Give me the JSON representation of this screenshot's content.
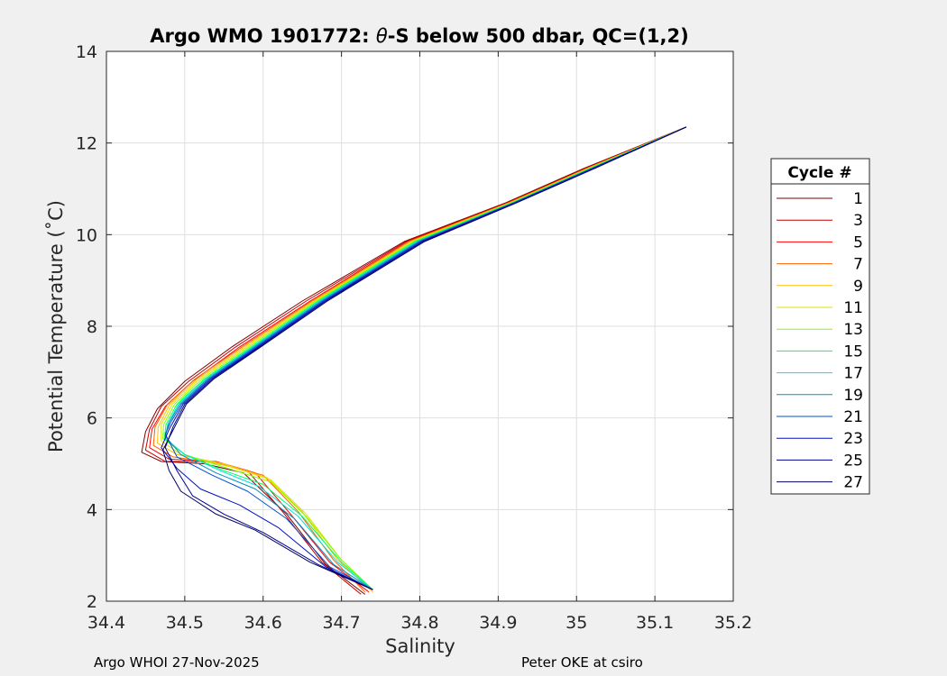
{
  "chart_data": {
    "type": "line",
    "title_prefix": "Argo WMO 1901772: ",
    "title_theta": "θ",
    "title_suffix": "-S below 500 dbar,  QC=(1,2)",
    "xlabel": "Salinity",
    "ylabel": "Potential Temperature (˚C)",
    "xlim": [
      34.4,
      35.2
    ],
    "ylim": [
      2,
      14
    ],
    "xticks": [
      34.4,
      34.5,
      34.6,
      34.7,
      34.8,
      34.9,
      35,
      35.1,
      35.2
    ],
    "xtick_labels": [
      "34.4",
      "34.5",
      "34.6",
      "34.7",
      "34.8",
      "34.9",
      "35",
      "35.1",
      "35.2"
    ],
    "yticks": [
      2,
      4,
      6,
      8,
      10,
      12,
      14
    ],
    "ytick_labels": [
      "2",
      "4",
      "6",
      "8",
      "10",
      "12",
      "14"
    ],
    "grid": true,
    "legend_title": "Cycle #",
    "legend_placement": "outside-right",
    "series": [
      {
        "name": "1",
        "color": "#800000",
        "values": [
          [
            34.73,
            2.15
          ],
          [
            34.68,
            2.8
          ],
          [
            34.63,
            3.9
          ],
          [
            34.575,
            4.8
          ],
          [
            34.525,
            5.0
          ],
          [
            34.47,
            5.05
          ],
          [
            34.445,
            5.25
          ],
          [
            34.45,
            5.7
          ],
          [
            34.465,
            6.2
          ],
          [
            34.5,
            6.8
          ],
          [
            34.56,
            7.55
          ],
          [
            34.65,
            8.55
          ],
          [
            34.78,
            9.85
          ],
          [
            34.91,
            10.7
          ],
          [
            35.01,
            11.45
          ],
          [
            35.14,
            12.35
          ]
        ]
      },
      {
        "name": "3",
        "color": "#c00000",
        "values": [
          [
            34.725,
            2.15
          ],
          [
            34.675,
            2.85
          ],
          [
            34.625,
            3.95
          ],
          [
            34.58,
            4.85
          ],
          [
            34.53,
            5.05
          ],
          [
            34.475,
            5.05
          ],
          [
            34.45,
            5.3
          ],
          [
            34.455,
            5.75
          ],
          [
            34.47,
            6.25
          ],
          [
            34.505,
            6.8
          ],
          [
            34.565,
            7.55
          ],
          [
            34.655,
            8.55
          ],
          [
            34.782,
            9.85
          ],
          [
            34.912,
            10.7
          ],
          [
            35.012,
            11.45
          ],
          [
            35.14,
            12.35
          ]
        ]
      },
      {
        "name": "5",
        "color": "#ff0000",
        "values": [
          [
            34.735,
            2.2
          ],
          [
            34.685,
            2.85
          ],
          [
            34.635,
            3.9
          ],
          [
            34.59,
            4.8
          ],
          [
            34.54,
            5.05
          ],
          [
            34.48,
            5.1
          ],
          [
            34.455,
            5.35
          ],
          [
            34.458,
            5.75
          ],
          [
            34.475,
            6.25
          ],
          [
            34.51,
            6.8
          ],
          [
            34.57,
            7.55
          ],
          [
            34.66,
            8.55
          ],
          [
            34.784,
            9.85
          ],
          [
            34.913,
            10.7
          ],
          [
            35.013,
            11.45
          ],
          [
            35.14,
            12.35
          ]
        ]
      },
      {
        "name": "7",
        "color": "#ff6000",
        "values": [
          [
            34.73,
            2.2
          ],
          [
            34.69,
            2.9
          ],
          [
            34.645,
            3.95
          ],
          [
            34.6,
            4.75
          ],
          [
            34.545,
            5.0
          ],
          [
            34.485,
            5.15
          ],
          [
            34.46,
            5.4
          ],
          [
            34.462,
            5.8
          ],
          [
            34.478,
            6.3
          ],
          [
            34.513,
            6.85
          ],
          [
            34.573,
            7.55
          ],
          [
            34.662,
            8.55
          ],
          [
            34.786,
            9.85
          ],
          [
            34.914,
            10.7
          ],
          [
            35.014,
            11.45
          ],
          [
            35.14,
            12.35
          ]
        ]
      },
      {
        "name": "9",
        "color": "#ffc000",
        "values": [
          [
            34.74,
            2.2
          ],
          [
            34.695,
            2.9
          ],
          [
            34.65,
            3.95
          ],
          [
            34.605,
            4.7
          ],
          [
            34.55,
            5.0
          ],
          [
            34.49,
            5.2
          ],
          [
            34.465,
            5.45
          ],
          [
            34.466,
            5.8
          ],
          [
            34.481,
            6.3
          ],
          [
            34.516,
            6.85
          ],
          [
            34.576,
            7.55
          ],
          [
            34.664,
            8.55
          ],
          [
            34.788,
            9.85
          ],
          [
            34.915,
            10.7
          ],
          [
            35.015,
            11.45
          ],
          [
            35.14,
            12.35
          ]
        ]
      },
      {
        "name": "11",
        "color": "#e0e000",
        "values": [
          [
            34.74,
            2.25
          ],
          [
            34.7,
            2.9
          ],
          [
            34.655,
            3.9
          ],
          [
            34.61,
            4.65
          ],
          [
            34.555,
            4.95
          ],
          [
            34.495,
            5.2
          ],
          [
            34.47,
            5.5
          ],
          [
            34.47,
            5.85
          ],
          [
            34.484,
            6.3
          ],
          [
            34.519,
            6.85
          ],
          [
            34.579,
            7.55
          ],
          [
            34.666,
            8.55
          ],
          [
            34.79,
            9.85
          ],
          [
            34.916,
            10.7
          ],
          [
            35.016,
            11.45
          ],
          [
            35.14,
            12.35
          ]
        ]
      },
      {
        "name": "13",
        "color": "#80ff00",
        "values": [
          [
            34.74,
            2.25
          ],
          [
            34.7,
            2.9
          ],
          [
            34.655,
            3.85
          ],
          [
            34.61,
            4.6
          ],
          [
            34.555,
            4.9
          ],
          [
            34.5,
            5.2
          ],
          [
            34.472,
            5.55
          ],
          [
            34.473,
            5.85
          ],
          [
            34.487,
            6.3
          ],
          [
            34.522,
            6.85
          ],
          [
            34.582,
            7.55
          ],
          [
            34.668,
            8.55
          ],
          [
            34.792,
            9.85
          ],
          [
            34.917,
            10.7
          ],
          [
            35.017,
            11.45
          ],
          [
            35.14,
            12.35
          ]
        ]
      },
      {
        "name": "15",
        "color": "#00ff60",
        "values": [
          [
            34.74,
            2.25
          ],
          [
            34.7,
            2.85
          ],
          [
            34.65,
            3.85
          ],
          [
            34.6,
            4.55
          ],
          [
            34.55,
            4.85
          ],
          [
            34.5,
            5.2
          ],
          [
            34.474,
            5.55
          ],
          [
            34.476,
            5.85
          ],
          [
            34.49,
            6.3
          ],
          [
            34.525,
            6.85
          ],
          [
            34.585,
            7.55
          ],
          [
            34.67,
            8.55
          ],
          [
            34.794,
            9.85
          ],
          [
            34.918,
            10.7
          ],
          [
            35.018,
            11.45
          ],
          [
            35.14,
            12.35
          ]
        ]
      },
      {
        "name": "17",
        "color": "#00e0e0",
        "values": [
          [
            34.74,
            2.25
          ],
          [
            34.695,
            2.85
          ],
          [
            34.645,
            3.85
          ],
          [
            34.595,
            4.5
          ],
          [
            34.545,
            4.85
          ],
          [
            34.5,
            5.2
          ],
          [
            34.475,
            5.55
          ],
          [
            34.478,
            5.85
          ],
          [
            34.492,
            6.3
          ],
          [
            34.527,
            6.85
          ],
          [
            34.587,
            7.55
          ],
          [
            34.672,
            8.55
          ],
          [
            34.796,
            9.85
          ],
          [
            34.919,
            10.7
          ],
          [
            35.019,
            11.45
          ],
          [
            35.14,
            12.35
          ]
        ]
      },
      {
        "name": "19",
        "color": "#0090c0",
        "values": [
          [
            34.74,
            2.25
          ],
          [
            34.69,
            2.8
          ],
          [
            34.64,
            3.8
          ],
          [
            34.59,
            4.45
          ],
          [
            34.54,
            4.8
          ],
          [
            34.495,
            5.2
          ],
          [
            34.475,
            5.6
          ],
          [
            34.48,
            5.9
          ],
          [
            34.494,
            6.3
          ],
          [
            34.529,
            6.85
          ],
          [
            34.589,
            7.55
          ],
          [
            34.674,
            8.55
          ],
          [
            34.798,
            9.85
          ],
          [
            34.92,
            10.7
          ],
          [
            35.02,
            11.45
          ],
          [
            35.14,
            12.35
          ]
        ]
      },
      {
        "name": "21",
        "color": "#0050d0",
        "values": [
          [
            34.74,
            2.25
          ],
          [
            34.685,
            2.75
          ],
          [
            34.63,
            3.8
          ],
          [
            34.58,
            4.4
          ],
          [
            34.535,
            4.75
          ],
          [
            34.49,
            5.15
          ],
          [
            34.475,
            5.65
          ],
          [
            34.482,
            5.9
          ],
          [
            34.496,
            6.3
          ],
          [
            34.531,
            6.85
          ],
          [
            34.591,
            7.55
          ],
          [
            34.676,
            8.55
          ],
          [
            34.8,
            9.85
          ],
          [
            34.921,
            10.7
          ],
          [
            35.021,
            11.45
          ],
          [
            35.14,
            12.35
          ]
        ]
      },
      {
        "name": "23",
        "color": "#0010c0",
        "values": [
          [
            34.74,
            2.25
          ],
          [
            34.68,
            2.75
          ],
          [
            34.62,
            3.6
          ],
          [
            34.57,
            4.1
          ],
          [
            34.52,
            4.45
          ],
          [
            34.49,
            4.9
          ],
          [
            34.47,
            5.35
          ],
          [
            34.48,
            5.75
          ],
          [
            34.498,
            6.3
          ],
          [
            34.533,
            6.85
          ],
          [
            34.593,
            7.55
          ],
          [
            34.678,
            8.55
          ],
          [
            34.802,
            9.85
          ],
          [
            34.922,
            10.7
          ],
          [
            35.022,
            11.45
          ],
          [
            35.14,
            12.35
          ]
        ]
      },
      {
        "name": "25",
        "color": "#000090",
        "values": [
          [
            34.74,
            2.25
          ],
          [
            34.67,
            2.8
          ],
          [
            34.6,
            3.5
          ],
          [
            34.55,
            3.9
          ],
          [
            34.51,
            4.3
          ],
          [
            34.49,
            4.85
          ],
          [
            34.475,
            5.35
          ],
          [
            34.485,
            5.8
          ],
          [
            34.5,
            6.3
          ],
          [
            34.535,
            6.85
          ],
          [
            34.595,
            7.55
          ],
          [
            34.68,
            8.55
          ],
          [
            34.804,
            9.85
          ],
          [
            34.923,
            10.7
          ],
          [
            35.023,
            11.45
          ],
          [
            35.14,
            12.35
          ]
        ]
      },
      {
        "name": "27",
        "color": "#000060",
        "values": [
          [
            34.74,
            2.25
          ],
          [
            34.66,
            2.85
          ],
          [
            34.59,
            3.55
          ],
          [
            34.54,
            3.9
          ],
          [
            34.495,
            4.4
          ],
          [
            34.48,
            4.85
          ],
          [
            34.472,
            5.3
          ],
          [
            34.487,
            5.8
          ],
          [
            34.502,
            6.3
          ],
          [
            34.537,
            6.85
          ],
          [
            34.597,
            7.55
          ],
          [
            34.682,
            8.55
          ],
          [
            34.806,
            9.85
          ],
          [
            34.924,
            10.7
          ],
          [
            35.024,
            11.45
          ],
          [
            35.14,
            12.35
          ]
        ]
      }
    ]
  },
  "footer": {
    "left": "Argo WHOI 27-Nov-2025",
    "right": "Peter OKE at csiro"
  }
}
